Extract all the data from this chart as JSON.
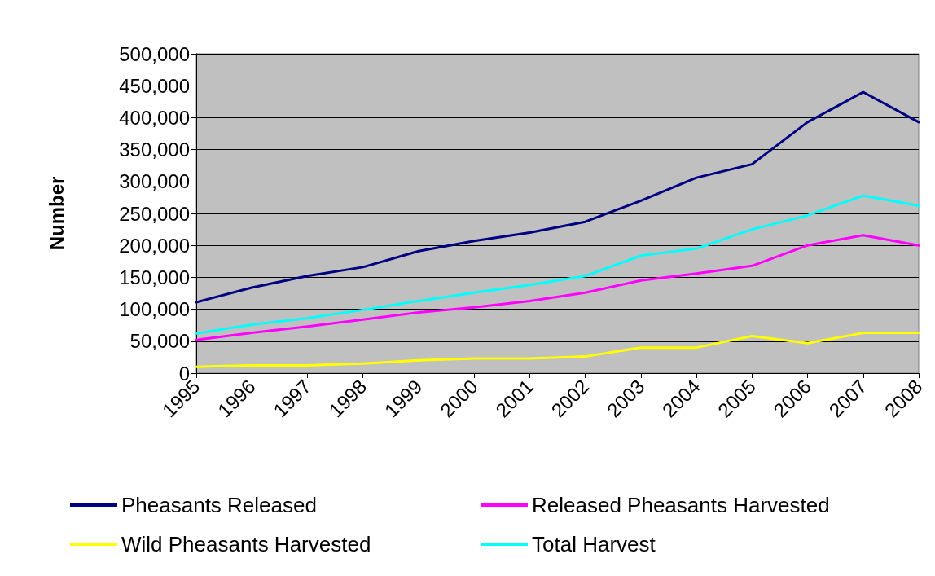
{
  "chart_data": {
    "type": "line",
    "ylabel": "Number",
    "categories": [
      "1995",
      "1996",
      "1997",
      "1998",
      "1999",
      "2000",
      "2001",
      "2002",
      "2003",
      "2004",
      "2005",
      "2006",
      "2007",
      "2008"
    ],
    "series": [
      {
        "name": "Pheasants Released",
        "color": "#000080",
        "values": [
          111000,
          134000,
          152000,
          166000,
          191000,
          207000,
          220000,
          237000,
          270000,
          306000,
          327000,
          393000,
          440000,
          393000
        ]
      },
      {
        "name": "Released Pheasants Harvested",
        "color": "#ff00ff",
        "values": [
          52000,
          63000,
          73000,
          84000,
          95000,
          103000,
          113000,
          126000,
          145000,
          156000,
          168000,
          200000,
          216000,
          200000
        ]
      },
      {
        "name": "Wild Pheasants Harvested",
        "color": "#ffff00",
        "values": [
          10000,
          12000,
          12000,
          15000,
          20000,
          23000,
          23000,
          26000,
          40000,
          40000,
          58000,
          47000,
          63000,
          63000
        ]
      },
      {
        "name": "Total Harvest",
        "color": "#00ffff",
        "values": [
          62000,
          76000,
          86000,
          99000,
          113000,
          126000,
          138000,
          152000,
          184000,
          195000,
          225000,
          247000,
          278000,
          262000
        ]
      }
    ],
    "ylim": [
      0,
      500000
    ],
    "yticks": [
      0,
      {
        "value": 50000,
        "label": "50,000"
      },
      {
        "value": 100000,
        "label": "100,000"
      },
      {
        "value": 150000,
        "label": "150,000"
      },
      {
        "value": 200000,
        "label": "200,000"
      },
      {
        "value": 250000,
        "label": "250,000"
      },
      {
        "value": 300000,
        "label": "300,000"
      },
      {
        "value": 350000,
        "label": "350,000"
      },
      {
        "value": 400000,
        "label": "400,000"
      },
      {
        "value": 450000,
        "label": "450,000"
      },
      {
        "value": 500000,
        "label": "500,000"
      }
    ],
    "grid": "y",
    "legend": "bottom",
    "marker": "none",
    "line_style": "solid"
  }
}
